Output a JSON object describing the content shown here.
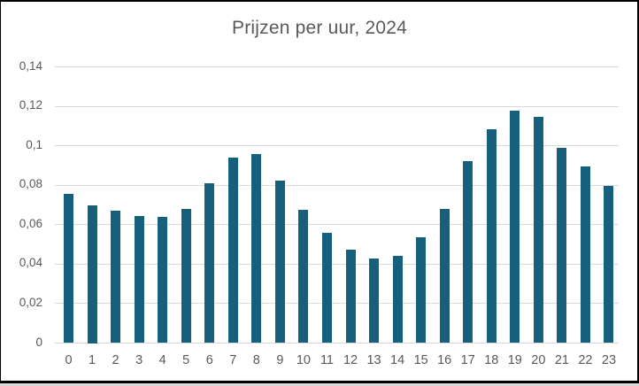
{
  "chart_data": {
    "type": "bar",
    "title": "Prijzen per uur, 2024",
    "categories": [
      "0",
      "1",
      "2",
      "3",
      "4",
      "5",
      "6",
      "7",
      "8",
      "9",
      "10",
      "11",
      "12",
      "13",
      "14",
      "15",
      "16",
      "17",
      "18",
      "19",
      "20",
      "21",
      "22",
      "23"
    ],
    "values": [
      0.0755,
      0.07,
      0.0671,
      0.0645,
      0.0638,
      0.0678,
      0.0808,
      0.0939,
      0.096,
      0.0824,
      0.0677,
      0.056,
      0.0475,
      0.0427,
      0.044,
      0.0534,
      0.0682,
      0.0921,
      0.1082,
      0.1178,
      0.1145,
      0.0991,
      0.0893,
      0.0795
    ],
    "xlabel": "",
    "ylabel": "",
    "ylim": [
      0,
      0.14
    ],
    "ytick_values": [
      0,
      0.02,
      0.04,
      0.06,
      0.08,
      0.1,
      0.12,
      0.14
    ],
    "ytick_labels": [
      "0",
      "0,02",
      "0,04",
      "0,06",
      "0,08",
      "0,1",
      "0,12",
      "0,14"
    ],
    "grid": true,
    "legend": false,
    "colors": {
      "bar": "#16607E",
      "gridline": "#D9D9D9",
      "label": "#595959",
      "frame_border": "#000000",
      "background": "#FFFFFF"
    }
  }
}
